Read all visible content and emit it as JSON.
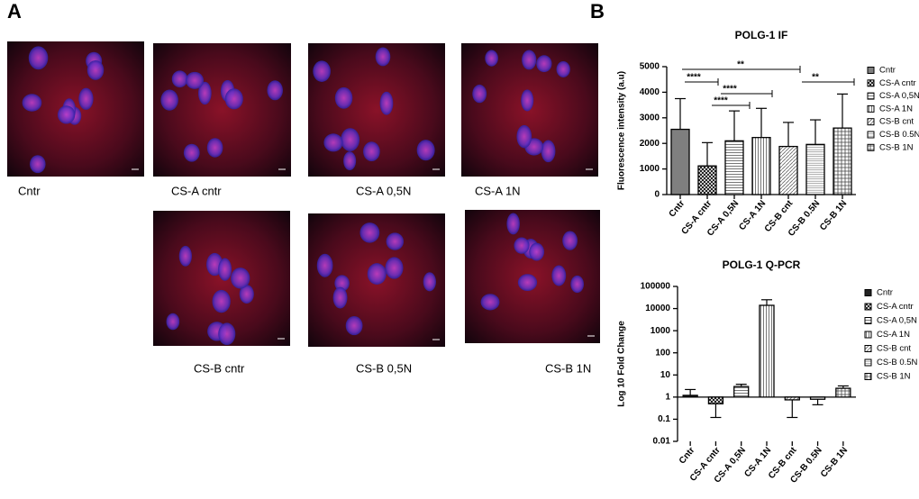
{
  "panels": {
    "a": "A",
    "b": "B"
  },
  "images": [
    "Cntr",
    "CS-A cntr",
    "CS-A 0,5N",
    "CS-A 1N",
    "CS-B cntr",
    "CS-B 0,5N",
    "CS-B 1N"
  ],
  "chart_data": [
    {
      "type": "bar",
      "title": "POLG-1 IF",
      "y_label": "Fluorescence intensity (a.u)",
      "categories": [
        "Cntr",
        "CS-A cntr",
        "CS-A 0,5N",
        "CS-A 1N",
        "CS-B cnt",
        "CS-B 0.5N",
        "CS-B 1N"
      ],
      "values": [
        2550,
        1120,
        2100,
        2230,
        1880,
        1960,
        2600
      ],
      "errors": [
        1200,
        910,
        1170,
        1140,
        940,
        960,
        1330
      ],
      "ylim": [
        0,
        5000
      ],
      "yticks": [
        0,
        1000,
        2000,
        3000,
        4000,
        5000
      ],
      "annotations": [
        "**",
        "****",
        "****",
        "****",
        "**"
      ],
      "legend": "right",
      "log_scale": false
    },
    {
      "type": "bar",
      "title": "POLG-1 Q-PCR",
      "y_label": "Log 10  Fold Change",
      "categories": [
        "Cntr",
        "CS-A cntr",
        "CS-A 0,5N",
        "CS-A 1N",
        "CS-B cnt",
        "CS-B 0.5N",
        "CS-B 1N"
      ],
      "values": [
        1.2,
        0.5,
        3,
        14000,
        0.75,
        0.8,
        2.5
      ],
      "errors": [
        1.0,
        0.38,
        0.8,
        11000,
        0.63,
        0.35,
        0.7
      ],
      "ylim": [
        0.01,
        100000
      ],
      "yticks": [
        0.01,
        0.1,
        1,
        10,
        100,
        1000,
        10000,
        100000
      ],
      "legend": "right",
      "log_scale": true
    }
  ]
}
